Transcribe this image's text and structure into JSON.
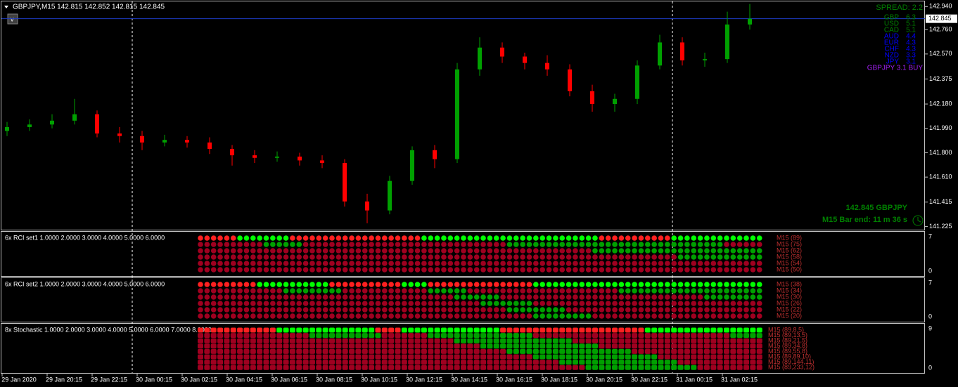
{
  "chart_data": {
    "type": "candlestick",
    "title": "GBPJPY,M15  142.815 142.852 142.815 142.845",
    "open": [
      141.97,
      142.0,
      142.02,
      142.05,
      142.1,
      141.95,
      141.93,
      141.88,
      141.9,
      141.88,
      141.83,
      141.78,
      141.76,
      141.77,
      141.74,
      141.72,
      141.42,
      141.35,
      141.58,
      141.82,
      141.75,
      142.45,
      142.62,
      142.55,
      142.5,
      142.45,
      142.28,
      142.18,
      142.22,
      142.48,
      142.66,
      142.52,
      142.53,
      142.8
    ],
    "high": [
      142.04,
      142.06,
      142.1,
      142.22,
      142.13,
      142.0,
      141.97,
      141.94,
      141.93,
      141.92,
      141.86,
      141.82,
      141.81,
      141.8,
      141.78,
      141.75,
      141.48,
      141.62,
      141.85,
      141.86,
      142.5,
      142.7,
      142.66,
      142.58,
      142.56,
      142.49,
      142.33,
      142.26,
      142.52,
      142.72,
      142.7,
      142.58,
      142.9,
      142.96
    ],
    "low": [
      141.93,
      141.97,
      141.99,
      142.02,
      141.92,
      141.88,
      141.82,
      141.85,
      141.84,
      141.79,
      141.7,
      141.72,
      141.73,
      141.7,
      141.68,
      141.38,
      141.25,
      141.32,
      141.55,
      141.68,
      141.72,
      142.4,
      142.5,
      142.45,
      142.4,
      142.24,
      142.12,
      142.12,
      142.18,
      142.45,
      142.48,
      142.47,
      142.5,
      142.76
    ],
    "close": [
      142.0,
      142.02,
      142.05,
      142.1,
      141.95,
      141.93,
      141.88,
      141.9,
      141.88,
      141.83,
      141.78,
      141.76,
      141.77,
      141.74,
      141.72,
      141.42,
      141.35,
      141.58,
      141.82,
      141.75,
      142.45,
      142.62,
      142.55,
      142.5,
      142.45,
      142.28,
      142.18,
      142.22,
      142.48,
      142.66,
      142.52,
      142.53,
      142.8,
      142.845
    ],
    "up_color": "#00a000",
    "down_color": "#ff0000",
    "ylim": [
      141.2,
      142.98
    ],
    "yticks": [
      {
        "value": 142.94,
        "label": "142.940"
      },
      {
        "value": 142.76,
        "label": "142.760"
      },
      {
        "value": 142.57,
        "label": "142.570"
      },
      142.375,
      {
        "value": 142.18,
        "label": "142.180"
      },
      {
        "value": 141.99,
        "label": "141.990"
      },
      {
        "value": 141.8,
        "label": "141.800"
      },
      {
        "value": 141.61,
        "label": "141.610"
      },
      141.415,
      141.225
    ],
    "bid": 142.845,
    "bid_label": "142.845",
    "x_labels": [
      "29 Jan 2020",
      "29 Jan 20:15",
      "29 Jan 22:15",
      "30 Jan 00:15",
      "30 Jan 02:15",
      "30 Jan 04:15",
      "30 Jan 06:15",
      "30 Jan 08:15",
      "30 Jan 10:15",
      "30 Jan 12:15",
      "30 Jan 14:15",
      "30 Jan 16:15",
      "30 Jan 18:15",
      "30 Jan 20:15",
      "30 Jan 22:15",
      "31 Jan 00:15",
      "31 Jan 02:15"
    ]
  },
  "info": {
    "spread": "SPREAD: 2.2",
    "strength": [
      {
        "currency": "GBP",
        "value": "6.3",
        "color": "#008000"
      },
      {
        "currency": "USD",
        "value": "5.1",
        "color": "#008000"
      },
      {
        "currency": "CAD",
        "value": "5.1",
        "color": "#008000"
      },
      {
        "currency": "AUD",
        "value": "4.4",
        "color": "#0000ff"
      },
      {
        "currency": "EUR",
        "value": "4.3",
        "color": "#0000ff"
      },
      {
        "currency": "CHF",
        "value": "4.3",
        "color": "#0000ff"
      },
      {
        "currency": "NZD",
        "value": "3.3",
        "color": "#0000ff"
      },
      {
        "currency": "JPY",
        "value": "3.1",
        "color": "#0000ff"
      }
    ],
    "signal": "GBPJPY 3.1 BUY",
    "price_symbol": "142.845  GBPJPY",
    "bar_end": "M15 Bar end: 11 m 36 s"
  },
  "panels": [
    {
      "title": "6x RCI set1 1.0000 2.0000 3.0000 4.0000 5.0000 6.0000",
      "max": "7",
      "min": "0",
      "labels": [
        "M15 (89)",
        "M15 (75)",
        "M15 (62)",
        "M15 (58)",
        "M15 (54)",
        "M15 (50)"
      ]
    },
    {
      "title": "6x RCI set2 1.0000 2.0000 3.0000 4.0000 5.0000 6.0000",
      "max": "7",
      "min": "0",
      "labels": [
        "M15 (38)",
        "M15 (34)",
        "M15 (30)",
        "M15 (26)",
        "M15 (22)",
        "M15 (20)"
      ]
    },
    {
      "title": "8x Stochastic 1.0000 2.0000 3.0000 4.0000 5.0000 6.0000 7.0000 8.0000",
      "max": "9",
      "min": "0",
      "labels": [
        "M15 (89,8,5)",
        "M15 (89,13,5)",
        "M15 (89,21,5)",
        "M15 (89,34,8)",
        "M15 (89,55,8)",
        "M15 (89,89,10)",
        "M15 (89,144,11)",
        "M15 (89,233,12)"
      ]
    }
  ]
}
